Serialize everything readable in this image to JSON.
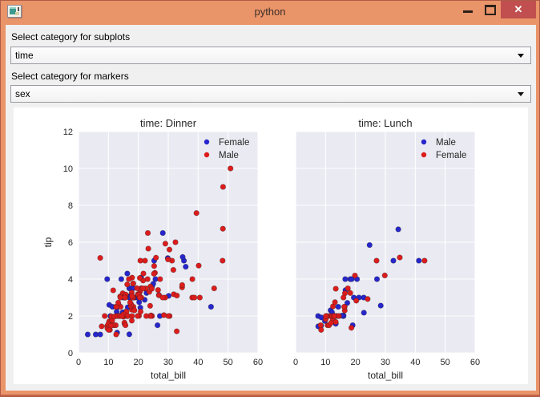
{
  "window": {
    "title": "python",
    "controls": {
      "minimize": "minimize",
      "maximize": "maximize",
      "close": "✕"
    },
    "colors": {
      "titlebar": "#EA9469",
      "close_button": "#C14F4F",
      "frame": "#AF5C46"
    }
  },
  "form": {
    "subplot_label": "Select category for subplots",
    "subplot_value": "time",
    "marker_label": "Select category for markers",
    "marker_value": "sex"
  },
  "chart_data": [
    {
      "type": "scatter",
      "title": "time: Dinner",
      "xlabel": "total_bill",
      "ylabel": "tip",
      "xlim": [
        0,
        60
      ],
      "ylim": [
        0,
        12
      ],
      "xticks": [
        0,
        10,
        20,
        30,
        40,
        50,
        60
      ],
      "yticks": [
        0,
        2,
        4,
        6,
        8,
        10,
        12
      ],
      "grid": true,
      "axes_bg": "#EAEAF2",
      "show_ytick_labels": true,
      "legend_position": "upper right",
      "series": [
        {
          "name": "Female",
          "color": "#2626CC",
          "points": [
            [
              16.99,
              1.01
            ],
            [
              24.59,
              3.61
            ],
            [
              35.26,
              5.0
            ],
            [
              14.83,
              3.02
            ],
            [
              10.33,
              1.67
            ],
            [
              16.97,
              3.5
            ],
            [
              20.29,
              2.75
            ],
            [
              15.77,
              2.23
            ],
            [
              19.65,
              3.0
            ],
            [
              15.06,
              3.0
            ],
            [
              20.69,
              2.45
            ],
            [
              16.93,
              3.07
            ],
            [
              10.29,
              2.6
            ],
            [
              34.81,
              5.2
            ],
            [
              26.41,
              1.5
            ],
            [
              16.45,
              2.47
            ],
            [
              3.07,
              1.0
            ],
            [
              17.07,
              3.0
            ],
            [
              26.86,
              3.14
            ],
            [
              25.28,
              5.0
            ],
            [
              14.73,
              2.2
            ],
            [
              5.75,
              1.0
            ],
            [
              16.32,
              4.3
            ],
            [
              22.75,
              3.25
            ],
            [
              11.35,
              2.5
            ],
            [
              15.38,
              3.0
            ],
            [
              44.3,
              2.5
            ],
            [
              22.42,
              3.48
            ],
            [
              20.92,
              4.08
            ],
            [
              14.31,
              4.0
            ],
            [
              7.25,
              1.0
            ],
            [
              25.71,
              4.0
            ],
            [
              17.31,
              3.5
            ],
            [
              29.85,
              5.14
            ],
            [
              25.0,
              3.75
            ],
            [
              13.39,
              2.61
            ],
            [
              16.21,
              2.0
            ],
            [
              17.51,
              3.0
            ],
            [
              10.59,
              1.61
            ],
            [
              10.63,
              2.0
            ],
            [
              9.6,
              4.0
            ],
            [
              20.9,
              3.5
            ],
            [
              18.15,
              3.5
            ],
            [
              12.76,
              2.23
            ],
            [
              13.27,
              2.5
            ],
            [
              28.17,
              6.5
            ],
            [
              12.9,
              1.1
            ],
            [
              30.14,
              3.09
            ],
            [
              22.12,
              2.88
            ],
            [
              35.83,
              4.67
            ],
            [
              27.18,
              2.0
            ],
            [
              18.78,
              3.0
            ]
          ]
        },
        {
          "name": "Male",
          "color": "#DC1C1C",
          "points": [
            [
              10.34,
              1.66
            ],
            [
              21.01,
              3.5
            ],
            [
              23.68,
              3.31
            ],
            [
              25.29,
              4.71
            ],
            [
              8.77,
              2.0
            ],
            [
              26.88,
              3.12
            ],
            [
              15.04,
              1.96
            ],
            [
              14.78,
              3.23
            ],
            [
              10.27,
              1.71
            ],
            [
              15.42,
              1.57
            ],
            [
              18.43,
              3.0
            ],
            [
              21.58,
              3.92
            ],
            [
              16.29,
              3.71
            ],
            [
              20.65,
              3.35
            ],
            [
              17.92,
              4.08
            ],
            [
              39.42,
              7.58
            ],
            [
              19.82,
              3.18
            ],
            [
              17.81,
              2.34
            ],
            [
              13.37,
              2.0
            ],
            [
              12.69,
              2.0
            ],
            [
              21.7,
              4.3
            ],
            [
              9.55,
              1.45
            ],
            [
              18.35,
              2.5
            ],
            [
              17.78,
              3.27
            ],
            [
              24.06,
              3.6
            ],
            [
              16.31,
              2.0
            ],
            [
              18.69,
              2.31
            ],
            [
              31.27,
              5.0
            ],
            [
              16.04,
              2.24
            ],
            [
              17.46,
              2.54
            ],
            [
              13.94,
              3.06
            ],
            [
              9.68,
              1.32
            ],
            [
              30.4,
              5.6
            ],
            [
              18.29,
              3.0
            ],
            [
              22.23,
              5.0
            ],
            [
              32.4,
              6.0
            ],
            [
              28.55,
              2.05
            ],
            [
              18.04,
              3.0
            ],
            [
              12.54,
              2.5
            ],
            [
              9.94,
              1.56
            ],
            [
              25.56,
              4.34
            ],
            [
              19.49,
              3.51
            ],
            [
              38.01,
              3.0
            ],
            [
              11.24,
              1.76
            ],
            [
              48.27,
              6.73
            ],
            [
              20.29,
              3.21
            ],
            [
              13.81,
              2.0
            ],
            [
              11.02,
              1.98
            ],
            [
              18.29,
              3.76
            ],
            [
              17.59,
              2.64
            ],
            [
              20.08,
              3.15
            ],
            [
              20.23,
              2.01
            ],
            [
              15.01,
              2.09
            ],
            [
              12.02,
              1.97
            ],
            [
              10.51,
              1.25
            ],
            [
              17.92,
              3.08
            ],
            [
              28.97,
              3.0
            ],
            [
              22.49,
              3.5
            ],
            [
              40.17,
              4.73
            ],
            [
              27.28,
              4.0
            ],
            [
              12.03,
              1.5
            ],
            [
              21.01,
              3.0
            ],
            [
              12.46,
              1.5
            ],
            [
              15.36,
              1.64
            ],
            [
              20.49,
              4.06
            ],
            [
              25.21,
              4.29
            ],
            [
              18.24,
              3.76
            ],
            [
              14.0,
              3.0
            ],
            [
              38.07,
              4.0
            ],
            [
              23.95,
              2.55
            ],
            [
              29.93,
              5.07
            ],
            [
              14.07,
              2.5
            ],
            [
              13.13,
              2.0
            ],
            [
              17.26,
              2.74
            ],
            [
              24.55,
              2.0
            ],
            [
              19.77,
              2.0
            ],
            [
              48.17,
              5.0
            ],
            [
              16.49,
              2.0
            ],
            [
              21.5,
              3.5
            ],
            [
              12.66,
              2.5
            ],
            [
              13.81,
              2.0
            ],
            [
              24.52,
              3.48
            ],
            [
              20.76,
              2.24
            ],
            [
              31.71,
              4.5
            ],
            [
              50.81,
              10.0
            ],
            [
              15.81,
              3.16
            ],
            [
              7.25,
              5.15
            ],
            [
              31.85,
              3.18
            ],
            [
              16.82,
              4.0
            ],
            [
              32.9,
              3.11
            ],
            [
              17.89,
              2.0
            ],
            [
              14.48,
              2.0
            ],
            [
              34.63,
              3.55
            ],
            [
              34.65,
              3.68
            ],
            [
              23.33,
              5.65
            ],
            [
              45.35,
              3.5
            ],
            [
              23.17,
              6.5
            ],
            [
              40.55,
              3.0
            ],
            [
              20.69,
              5.0
            ],
            [
              30.46,
              2.0
            ],
            [
              23.1,
              4.0
            ],
            [
              15.69,
              1.5
            ],
            [
              26.59,
              3.41
            ],
            [
              38.73,
              3.0
            ],
            [
              24.27,
              2.03
            ],
            [
              30.06,
              2.0
            ],
            [
              25.89,
              5.16
            ],
            [
              48.33,
              9.0
            ],
            [
              28.15,
              3.0
            ],
            [
              11.59,
              1.5
            ],
            [
              7.74,
              1.44
            ],
            [
              20.45,
              3.0
            ],
            [
              13.28,
              2.72
            ],
            [
              24.01,
              2.0
            ],
            [
              15.69,
              3.0
            ],
            [
              11.61,
              3.39
            ],
            [
              10.77,
              1.47
            ],
            [
              15.53,
              3.0
            ],
            [
              10.07,
              1.25
            ],
            [
              12.6,
              1.0
            ],
            [
              32.83,
              1.17
            ],
            [
              29.03,
              5.92
            ],
            [
              22.67,
              2.0
            ],
            [
              17.82,
              1.75
            ]
          ]
        }
      ]
    },
    {
      "type": "scatter",
      "title": "time: Lunch",
      "xlabel": "total_bill",
      "ylabel": "",
      "xlim": [
        0,
        60
      ],
      "ylim": [
        0,
        12
      ],
      "xticks": [
        0,
        10,
        20,
        30,
        40,
        50,
        60
      ],
      "yticks": [
        0,
        2,
        4,
        6,
        8,
        10,
        12
      ],
      "grid": true,
      "axes_bg": "#EAEAF2",
      "show_ytick_labels": false,
      "legend_position": "upper right",
      "series": [
        {
          "name": "Male",
          "color": "#2626CC",
          "points": [
            [
              27.2,
              4.0
            ],
            [
              22.76,
              3.0
            ],
            [
              17.29,
              2.71
            ],
            [
              19.44,
              3.0
            ],
            [
              16.66,
              3.4
            ],
            [
              32.68,
              5.0
            ],
            [
              15.98,
              2.03
            ],
            [
              13.03,
              2.0
            ],
            [
              18.28,
              4.0
            ],
            [
              24.71,
              5.85
            ],
            [
              21.16,
              3.0
            ],
            [
              11.69,
              2.31
            ],
            [
              14.26,
              2.5
            ],
            [
              15.95,
              2.0
            ],
            [
              8.52,
              1.48
            ],
            [
              22.82,
              2.18
            ],
            [
              19.08,
              1.5
            ],
            [
              16.0,
              2.0
            ],
            [
              34.3,
              6.7
            ],
            [
              41.19,
              5.0
            ],
            [
              9.78,
              1.73
            ],
            [
              7.51,
              2.0
            ],
            [
              28.44,
              2.56
            ],
            [
              15.48,
              2.02
            ],
            [
              16.58,
              4.0
            ],
            [
              7.56,
              1.44
            ],
            [
              10.34,
              2.0
            ],
            [
              13.51,
              2.0
            ],
            [
              18.71,
              4.0
            ],
            [
              20.53,
              4.0
            ],
            [
              12.16,
              2.2
            ],
            [
              8.58,
              1.92
            ],
            [
              13.42,
              1.58
            ]
          ]
        },
        {
          "name": "Female",
          "color": "#DC1C1C",
          "points": [
            [
              10.07,
              1.83
            ],
            [
              34.83,
              5.17
            ],
            [
              10.65,
              1.5
            ],
            [
              12.43,
              1.8
            ],
            [
              24.08,
              2.92
            ],
            [
              13.42,
              1.68
            ],
            [
              12.48,
              2.52
            ],
            [
              29.8,
              4.2
            ],
            [
              14.52,
              2.0
            ],
            [
              11.38,
              2.0
            ],
            [
              20.27,
              2.83
            ],
            [
              11.17,
              1.5
            ],
            [
              12.26,
              2.0
            ],
            [
              18.26,
              3.25
            ],
            [
              8.51,
              1.25
            ],
            [
              10.33,
              2.0
            ],
            [
              14.15,
              2.0
            ],
            [
              13.16,
              2.75
            ],
            [
              17.47,
              3.5
            ],
            [
              27.05,
              5.0
            ],
            [
              16.43,
              2.3
            ],
            [
              8.35,
              1.5
            ],
            [
              18.64,
              1.36
            ],
            [
              11.87,
              1.63
            ],
            [
              19.81,
              4.19
            ],
            [
              43.11,
              5.0
            ],
            [
              13.0,
              2.0
            ],
            [
              12.74,
              2.01
            ],
            [
              13.0,
              2.0
            ],
            [
              16.4,
              2.5
            ],
            [
              16.47,
              3.23
            ],
            [
              13.42,
              3.48
            ],
            [
              15.98,
              3.0
            ],
            [
              16.27,
              2.5
            ],
            [
              10.09,
              2.0
            ]
          ]
        }
      ]
    }
  ]
}
